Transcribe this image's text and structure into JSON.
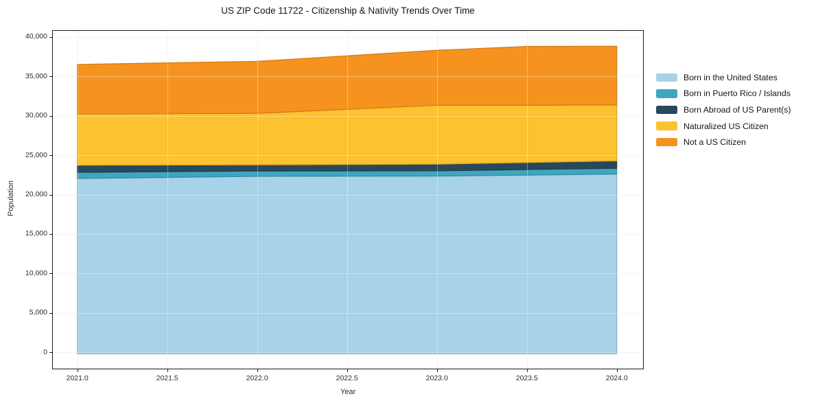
{
  "title": "US ZIP Code 11722 - Citizenship & Nativity Trends Over Time",
  "axes": {
    "xlabel": "Year",
    "ylabel": "Population",
    "x_ticks": {
      "values": [
        2021.0,
        2021.5,
        2022.0,
        2022.5,
        2023.0,
        2023.5,
        2024.0
      ],
      "labels": [
        "2021.0",
        "2021.5",
        "2022.0",
        "2022.5",
        "2023.0",
        "2023.5",
        "2024.0"
      ]
    },
    "y_ticks": {
      "values": [
        0,
        5000,
        10000,
        15000,
        20000,
        25000,
        30000,
        35000,
        40000
      ],
      "labels": [
        "0",
        "5,000",
        "10,000",
        "15,000",
        "20,000",
        "25,000",
        "30,000",
        "35,000",
        "40,000"
      ]
    }
  },
  "colors": {
    "background": "#ffffff",
    "grid": "#ebebeb",
    "spine": "#1a1a1a",
    "text": "#2b2b2b"
  },
  "chart_data": {
    "type": "area",
    "stacked": true,
    "title": "US ZIP Code 11722 - Citizenship & Nativity Trends Over Time",
    "xlabel": "Year",
    "ylabel": "Population",
    "x": [
      2021,
      2022,
      2023,
      2023.5,
      2024
    ],
    "series": [
      {
        "name": "Born in the United States",
        "color": "#A8D2E8",
        "values": [
          22050,
          22320,
          22360,
          22480,
          22600
        ]
      },
      {
        "name": "Born in Puerto Rico / Islands",
        "color": "#3FA6C0",
        "values": [
          780,
          680,
          660,
          700,
          740
        ]
      },
      {
        "name": "Born Abroad of US Parent(s)",
        "color": "#29485C",
        "values": [
          900,
          780,
          850,
          895,
          940
        ]
      },
      {
        "name": "Naturalized US Citizen",
        "color": "#FDC22F",
        "values": [
          6500,
          6530,
          7460,
          7270,
          7080
        ]
      },
      {
        "name": "Not a US Citizen",
        "color": "#F6931E",
        "values": [
          6280,
          6590,
          6970,
          7445,
          7460
        ]
      }
    ],
    "stacked_totals": [
      36510,
      36900,
      38300,
      38790,
      38820
    ],
    "x_range": [
      2020.86,
      2024.15
    ],
    "y_range": [
      -2150,
      40850
    ],
    "grid": true,
    "legend_position": "right-outside"
  }
}
